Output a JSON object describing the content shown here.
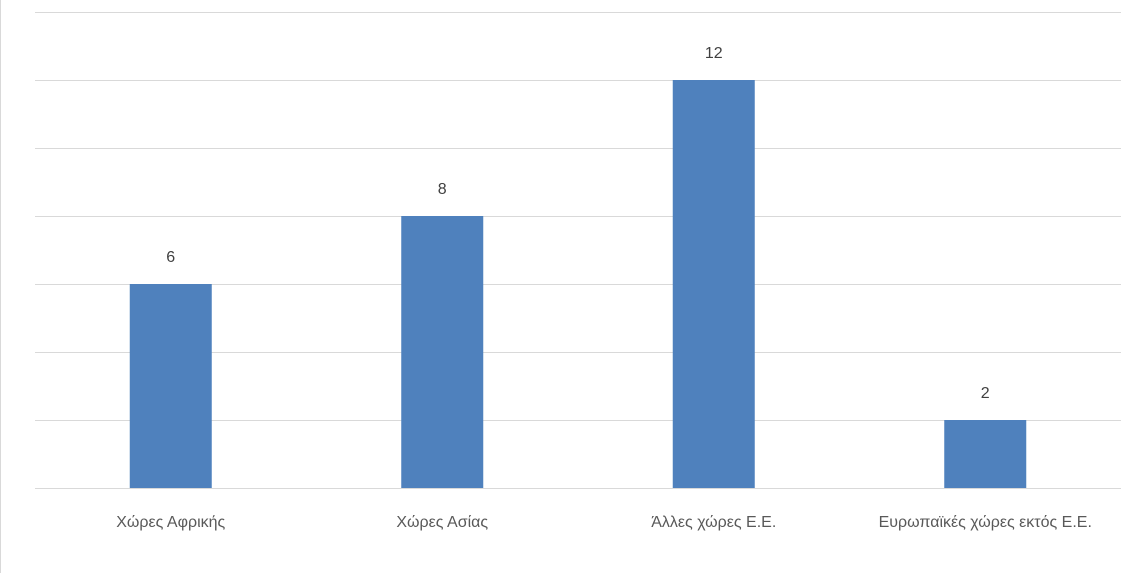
{
  "chart_data": {
    "type": "bar",
    "categories": [
      "Χώρες Αφρικής",
      "Χώρες Ασίας",
      "Άλλες χώρες Ε.Ε.",
      "Ευρωπαϊκές χώρες εκτός Ε.Ε."
    ],
    "values": [
      6,
      8,
      12,
      2
    ],
    "ylim": [
      0,
      14
    ],
    "grid": true,
    "data_labels": true,
    "bar_color": "#4f81bd"
  }
}
